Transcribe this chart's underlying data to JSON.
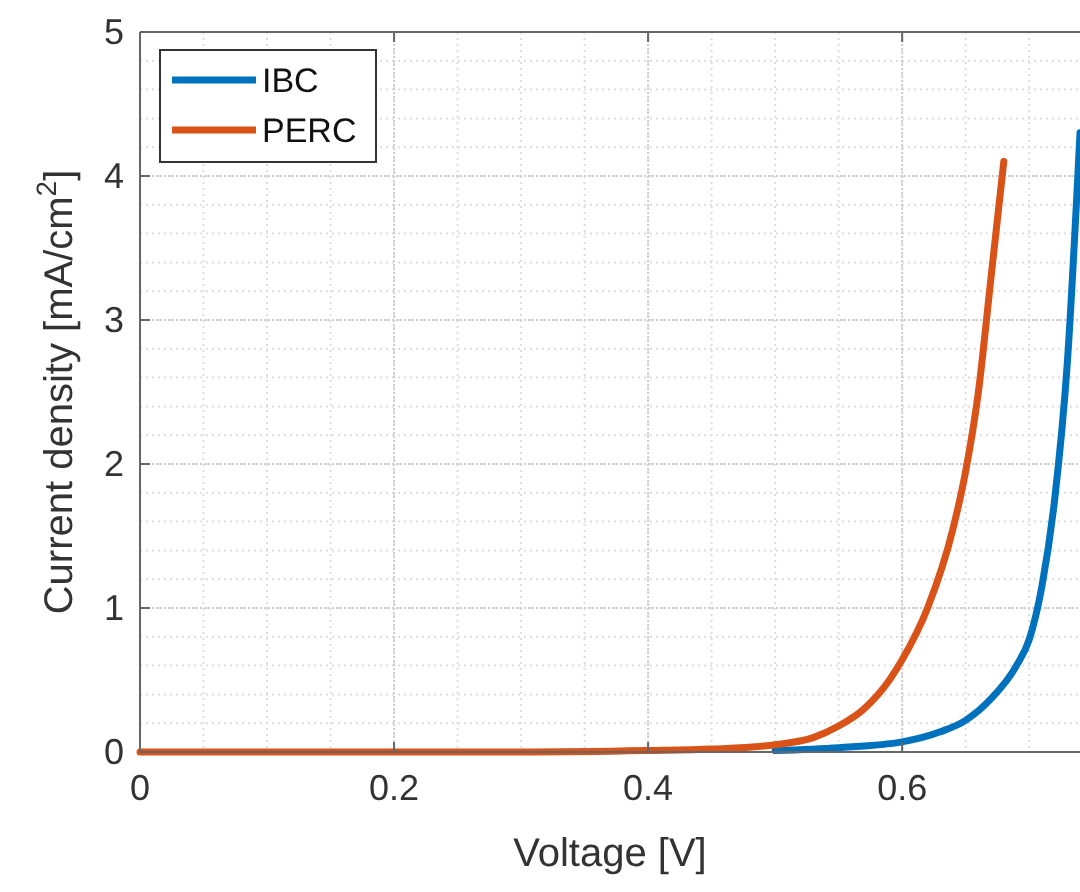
{
  "chart_data": {
    "type": "line",
    "xlabel": "Voltage [V]",
    "ylabel": "Current density [mA/cm$^{2}$]",
    "xlim": [
      0,
      0.74
    ],
    "xticks": [
      0,
      0.2,
      0.4,
      0.6
    ],
    "ylim": [
      0,
      5
    ],
    "yticks": [
      0,
      1,
      2,
      3,
      4,
      5
    ],
    "grid": true,
    "legend": "top left",
    "marker": "none",
    "line_style": "solid",
    "series": [
      {
        "name": "IBC",
        "color": "#0072bd",
        "x": [
          0.5,
          0.55,
          0.6,
          0.63,
          0.65,
          0.67,
          0.69,
          0.7,
          0.71,
          0.72,
          0.73,
          0.74
        ],
        "values": [
          0.01,
          0.03,
          0.07,
          0.14,
          0.22,
          0.37,
          0.6,
          0.78,
          1.15,
          1.75,
          2.7,
          4.3
        ]
      },
      {
        "name": "PERC",
        "color": "#d95319",
        "x": [
          0,
          0.1,
          0.2,
          0.3,
          0.4,
          0.45,
          0.5,
          0.53,
          0.55,
          0.57,
          0.59,
          0.6,
          0.62,
          0.64,
          0.65,
          0.66,
          0.67,
          0.68
        ],
        "values": [
          0,
          0,
          0,
          0,
          0.01,
          0.02,
          0.05,
          0.1,
          0.18,
          0.3,
          0.5,
          0.64,
          1.0,
          1.55,
          1.95,
          2.5,
          3.3,
          4.1
        ]
      }
    ]
  }
}
